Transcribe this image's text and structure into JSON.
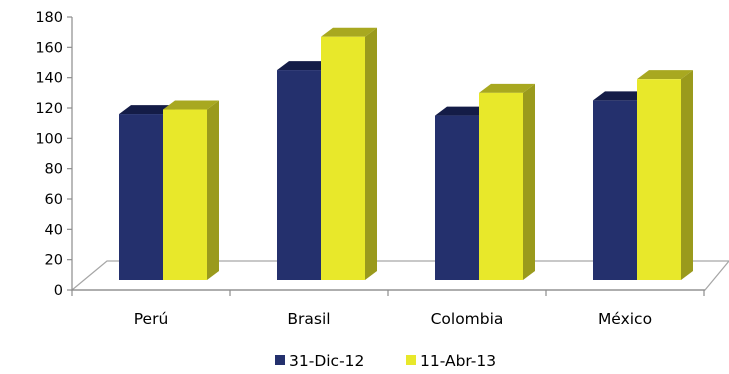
{
  "chart_data": {
    "type": "bar",
    "categories": [
      "Perú",
      "Brasil",
      "Colombia",
      "México"
    ],
    "series": [
      {
        "name": "31-Dic-12",
        "values": [
          116,
          145,
          115,
          125
        ],
        "color": "#24306d",
        "side_color": "#141c47",
        "top_color": "#141c47"
      },
      {
        "name": "11-Abr-13",
        "values": [
          119,
          167,
          130,
          139
        ],
        "color": "#e8e82a",
        "side_color": "#9a9a1c",
        "top_color": "#a8a820"
      }
    ],
    "ylim": [
      0,
      180
    ],
    "yticks": [
      "0",
      "20",
      "40",
      "60",
      "80",
      "100",
      "120",
      "140",
      "160",
      "180"
    ],
    "title": "",
    "xlabel": "",
    "ylabel": "",
    "grid": false,
    "legend_position": "bottom"
  }
}
